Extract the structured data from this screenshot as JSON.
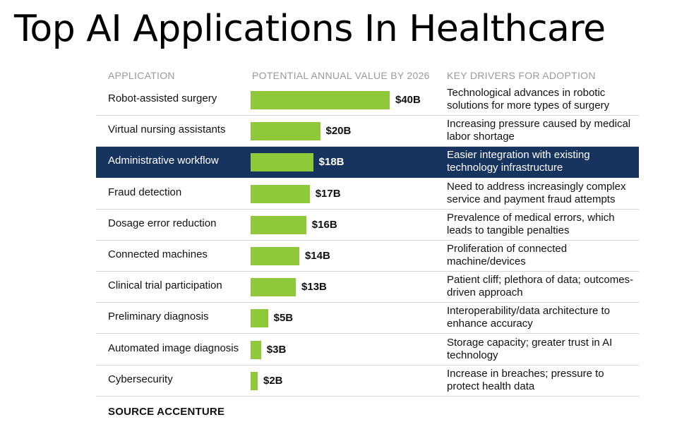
{
  "title": "Top AI Applications In Healthcare",
  "headers": {
    "application": "APPLICATION",
    "value": "POTENTIAL ANNUAL  VALUE BY 2026",
    "drivers": "KEY DRIVERS FOR ADOPTION"
  },
  "source": "SOURCE ACCENTURE",
  "colors": {
    "bar": "#8fc93a",
    "highlight": "#17345e"
  },
  "chart_data": {
    "type": "bar",
    "orientation": "horizontal",
    "title": "Top AI Applications In Healthcare",
    "categories": [
      "Robot-assisted surgery",
      "Virtual nursing assistants",
      "Administrative workflow",
      "Fraud detection",
      "Dosage error reduction",
      "Connected machines",
      "Clinical trial participation",
      "Preliminary diagnosis",
      "Automated image diagnosis",
      "Cybersecurity"
    ],
    "values": [
      40,
      20,
      18,
      17,
      16,
      14,
      13,
      5,
      3,
      2
    ],
    "value_labels": [
      "$40B",
      "$20B",
      "$18B",
      "$17B",
      "$16B",
      "$14B",
      "$13B",
      "$5B",
      "$3B",
      "$2B"
    ],
    "drivers": [
      "Technological advances in robotic solutions for more types of surgery",
      "Increasing pressure caused by medical labor shortage",
      "Easier integration with existing technology infrastructure",
      "Need to address increasingly complex service and payment fraud attempts",
      "Prevalence of medical errors, which leads to tangible penalties",
      "Proliferation of connected machine/devices",
      "Patient cliff; plethora of data; outcomes-driven approach",
      "Interoperability/data architecture to enhance accuracy",
      "Storage capacity; greater trust in AI technology",
      "Increase in breaches; pressure to protect health data"
    ],
    "highlighted_category": "Administrative workflow",
    "xlim": [
      0,
      40
    ]
  }
}
